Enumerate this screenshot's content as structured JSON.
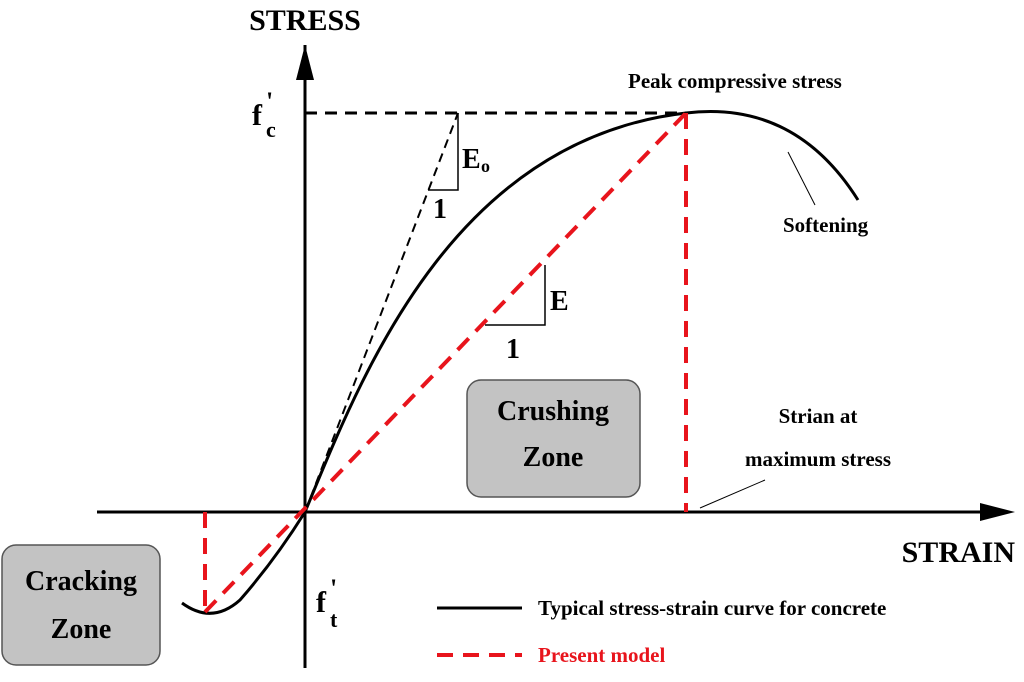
{
  "axes": {
    "y_label": "STRESS",
    "x_label": "STRAIN"
  },
  "fc_label": {
    "base": "f",
    "mark": "'",
    "sub": "c"
  },
  "ft_label": {
    "base": "f",
    "mark": "'",
    "sub": "t"
  },
  "annotations": {
    "peak": "Peak compressive stress",
    "softening": "Softening",
    "strain_max": [
      "Strian at",
      "maximum stress"
    ],
    "initial_modulus": {
      "base": "E",
      "sub": "o",
      "run": "1"
    },
    "secant_modulus": {
      "base": "E",
      "run": "1"
    }
  },
  "zones": {
    "crushing": [
      "Crushing",
      "Zone"
    ],
    "cracking": [
      "Cracking",
      "Zone"
    ]
  },
  "legend": [
    {
      "label": "Typical stress-strain curve for concrete",
      "color": "#000000"
    },
    {
      "label": "Present model",
      "color": "#e8141c"
    }
  ]
}
